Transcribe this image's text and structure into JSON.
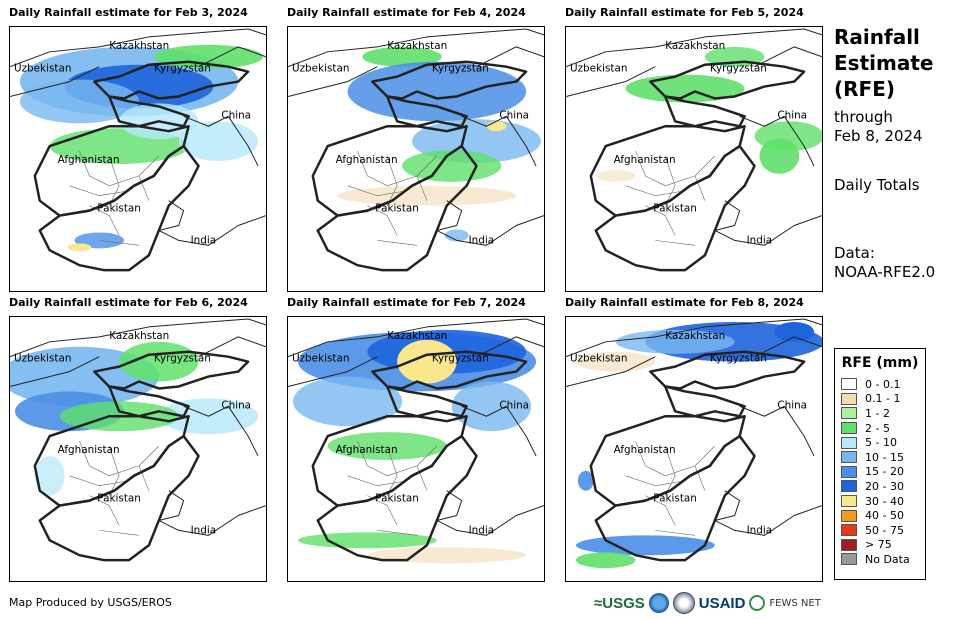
{
  "panels": [
    {
      "title": "Daily Rainfall estimate for Feb 3, 2024"
    },
    {
      "title": "Daily Rainfall estimate for Feb 4, 2024"
    },
    {
      "title": "Daily Rainfall estimate for Feb 5, 2024"
    },
    {
      "title": "Daily Rainfall estimate for Feb 6, 2024"
    },
    {
      "title": "Daily Rainfall estimate for Feb 7, 2024"
    },
    {
      "title": "Daily Rainfall estimate for Feb 8, 2024"
    }
  ],
  "map_labels": {
    "kazakhstan": "Kazakhstan",
    "uzbekistan": "Uzbekistan",
    "kyrgyzstan": "Kyrgyzstan",
    "china": "China",
    "afghanistan": "Afghanistan",
    "pakistan": "Pakistan",
    "india": "India"
  },
  "side": {
    "title_line1": "Rainfall",
    "title_line2": "Estimate",
    "title_line3": "(RFE)",
    "through": "through",
    "date": "Feb 8, 2024",
    "totals": "Daily Totals",
    "data_label": "Data:",
    "data_source": "NOAA-RFE2.0"
  },
  "legend": {
    "title": "RFE (mm)",
    "items": [
      {
        "label": "0 - 0.1",
        "color": "#ffffff"
      },
      {
        "label": "0.1 - 1",
        "color": "#f3dcb4"
      },
      {
        "label": "1 - 2",
        "color": "#aaf2a0"
      },
      {
        "label": "2 - 5",
        "color": "#5fe06a"
      },
      {
        "label": "5 - 10",
        "color": "#b4e8fa"
      },
      {
        "label": "10 - 15",
        "color": "#78b8f0"
      },
      {
        "label": "15 - 20",
        "color": "#4a8ee6"
      },
      {
        "label": "20 - 30",
        "color": "#1e64dc"
      },
      {
        "label": "30 - 40",
        "color": "#fae68c"
      },
      {
        "label": "40 - 50",
        "color": "#f59a1e"
      },
      {
        "label": "50 - 75",
        "color": "#e63c14"
      },
      {
        "label": "> 75",
        "color": "#a01e1e"
      },
      {
        "label": "No Data",
        "color": "#999999"
      }
    ]
  },
  "footer": {
    "credit": "Map Produced by USGS/EROS"
  },
  "logos": {
    "usgs": "≈USGS",
    "usaid": "USAID",
    "fews": "FEWS NET"
  }
}
